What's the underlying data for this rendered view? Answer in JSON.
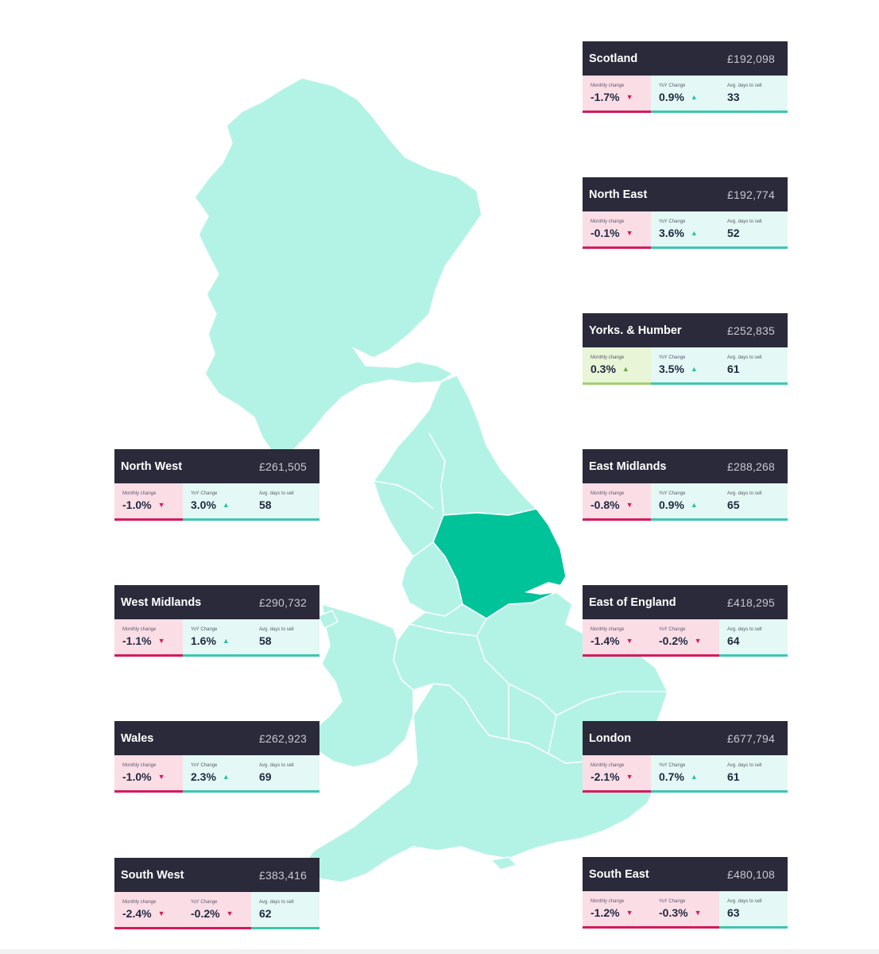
{
  "map": {
    "colors": {
      "region": "#b3f3e6",
      "highlight": "#00c39a",
      "border": "#ffffff"
    },
    "highlighted_region": "Yorks. & Humber"
  },
  "regions": [
    {
      "id": "scotland",
      "name": "Scotland",
      "price": "£192,098",
      "m_label": "Monthly change",
      "m_value": "-1.7%",
      "m_dir": "down",
      "y_label": "YoY Change",
      "y_value": "0.9%",
      "y_dir": "up",
      "d_label": "Avg. days to sell",
      "d_value": "33"
    },
    {
      "id": "north-east",
      "name": "North East",
      "price": "£192,774",
      "m_label": "Monthly change",
      "m_value": "-0.1%",
      "m_dir": "down",
      "y_label": "YoY Change",
      "y_value": "3.6%",
      "y_dir": "up",
      "d_label": "Avg. days to sell",
      "d_value": "52"
    },
    {
      "id": "yorks-humber",
      "name": "Yorks. & Humber",
      "price": "£252,835",
      "m_label": "Monthly change",
      "m_value": "0.3%",
      "m_dir": "up-green",
      "y_label": "YoY Change",
      "y_value": "3.5%",
      "y_dir": "up",
      "d_label": "Avg. days to sell",
      "d_value": "61"
    },
    {
      "id": "east-midlands",
      "name": "East Midlands",
      "price": "£288,268",
      "m_label": "Monthly change",
      "m_value": "-0.8%",
      "m_dir": "down",
      "y_label": "YoY Change",
      "y_value": "0.9%",
      "y_dir": "up",
      "d_label": "Avg. days to sell",
      "d_value": "65"
    },
    {
      "id": "east-of-england",
      "name": "East of England",
      "price": "£418,295",
      "m_label": "Monthly change",
      "m_value": "-1.4%",
      "m_dir": "down",
      "y_label": "YoY Change",
      "y_value": "-0.2%",
      "y_dir": "down",
      "d_label": "Avg. days to sell",
      "d_value": "64"
    },
    {
      "id": "london",
      "name": "London",
      "price": "£677,794",
      "m_label": "Monthly change",
      "m_value": "-2.1%",
      "m_dir": "down",
      "y_label": "YoY Change",
      "y_value": "0.7%",
      "y_dir": "up",
      "d_label": "Avg. days to sell",
      "d_value": "61"
    },
    {
      "id": "south-east",
      "name": "South East",
      "price": "£480,108",
      "m_label": "Monthly change",
      "m_value": "-1.2%",
      "m_dir": "down",
      "y_label": "YoY Change",
      "y_value": "-0.3%",
      "y_dir": "down",
      "d_label": "Avg. days to sell",
      "d_value": "63"
    },
    {
      "id": "north-west",
      "name": "North West",
      "price": "£261,505",
      "m_label": "Monthly change",
      "m_value": "-1.0%",
      "m_dir": "down",
      "y_label": "YoY Change",
      "y_value": "3.0%",
      "y_dir": "up",
      "d_label": "Avg. days to sell",
      "d_value": "58"
    },
    {
      "id": "west-midlands",
      "name": "West Midlands",
      "price": "£290,732",
      "m_label": "Monthly change",
      "m_value": "-1.1%",
      "m_dir": "down",
      "y_label": "YoY Change",
      "y_value": "1.6%",
      "y_dir": "up",
      "d_label": "Avg. days to sell",
      "d_value": "58"
    },
    {
      "id": "wales",
      "name": "Wales",
      "price": "£262,923",
      "m_label": "Monthly change",
      "m_value": "-1.0%",
      "m_dir": "down",
      "y_label": "YoY Change",
      "y_value": "2.3%",
      "y_dir": "up",
      "d_label": "Avg. days to sell",
      "d_value": "69"
    },
    {
      "id": "south-west",
      "name": "South West",
      "price": "£383,416",
      "m_label": "Monthly change",
      "m_value": "-2.4%",
      "m_dir": "down",
      "y_label": "YoY Change",
      "y_value": "-0.2%",
      "y_dir": "down",
      "d_label": "Avg. days to sell",
      "d_value": "62"
    }
  ]
}
